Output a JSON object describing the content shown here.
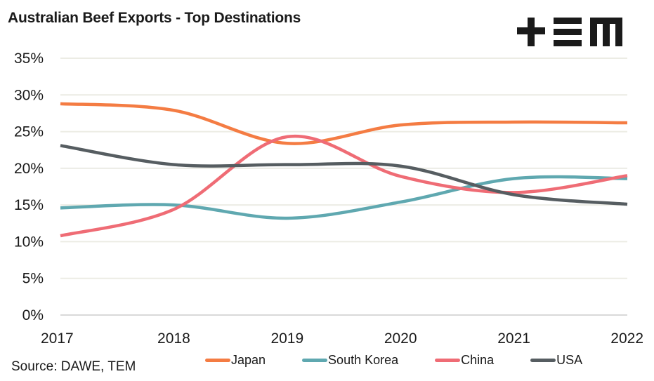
{
  "title": "Australian Beef Exports - Top Destinations",
  "logo": {
    "name": "tem-logo",
    "text": "+EM"
  },
  "source": "Source: DAWE, TEM",
  "chart_data": {
    "type": "line",
    "title": "Australian Beef Exports - Top Destinations",
    "xlabel": "",
    "ylabel": "",
    "x": [
      "2017",
      "2018",
      "2019",
      "2020",
      "2021",
      "2022"
    ],
    "ylim": [
      0,
      35
    ],
    "yticks": [
      0,
      5,
      10,
      15,
      20,
      25,
      30,
      35
    ],
    "ytick_labels": [
      "0%",
      "5%",
      "10%",
      "15%",
      "20%",
      "25%",
      "30%",
      "35%"
    ],
    "grid": true,
    "smooth": true,
    "legend": "bottom",
    "series": [
      {
        "name": "Japan",
        "color": "#f47c43",
        "values": [
          28.8,
          27.9,
          23.4,
          25.9,
          26.3,
          26.2
        ]
      },
      {
        "name": "South Korea",
        "color": "#5fa8b0",
        "values": [
          14.6,
          15.0,
          13.2,
          15.4,
          18.6,
          18.6
        ]
      },
      {
        "name": "China",
        "color": "#ef6c75",
        "values": [
          10.8,
          14.4,
          24.3,
          18.9,
          16.7,
          19.0
        ]
      },
      {
        "name": "USA",
        "color": "#565d61",
        "values": [
          23.1,
          20.5,
          20.5,
          20.3,
          16.4,
          15.1
        ]
      }
    ]
  }
}
